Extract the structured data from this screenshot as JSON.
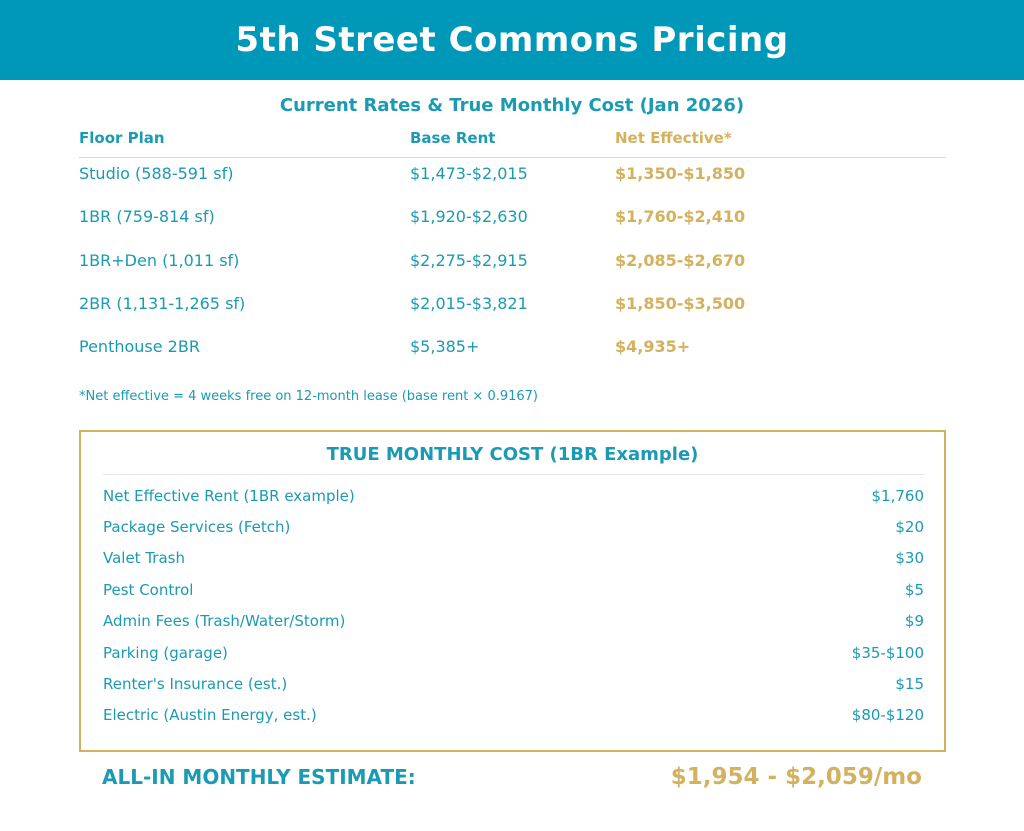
{
  "header": {
    "title": "5th Street Commons Pricing"
  },
  "subtitle": "Current Rates & True Monthly Cost (Jan 2026)",
  "rates_table": {
    "columns": [
      "Floor Plan",
      "Base Rent",
      "Net Effective*"
    ],
    "rows": [
      {
        "plan": "Studio (588-591 sf)",
        "base": "$1,473-$2,015",
        "net": "$1,350-$1,850"
      },
      {
        "plan": "1BR (759-814 sf)",
        "base": "$1,920-$2,630",
        "net": "$1,760-$2,410"
      },
      {
        "plan": "1BR+Den (1,011 sf)",
        "base": "$2,275-$2,915",
        "net": "$2,085-$2,670"
      },
      {
        "plan": "2BR (1,131-1,265 sf)",
        "base": "$2,015-$3,821",
        "net": "$1,850-$3,500"
      },
      {
        "plan": "Penthouse 2BR",
        "base": "$5,385+",
        "net": "$4,935+"
      }
    ]
  },
  "footnote": "*Net effective = 4 weeks free on 12-month lease (base rent × 0.9167)",
  "cost_box": {
    "title": "TRUE MONTHLY COST (1BR Example)",
    "items": [
      {
        "label": "Net Effective Rent (1BR example)",
        "value": "$1,760"
      },
      {
        "label": "Package Services (Fetch)",
        "value": "$20"
      },
      {
        "label": "Valet Trash",
        "value": "$30"
      },
      {
        "label": "Pest Control",
        "value": "$5"
      },
      {
        "label": "Admin Fees (Trash/Water/Storm)",
        "value": "$9"
      },
      {
        "label": "Parking (garage)",
        "value": "$35-$100"
      },
      {
        "label": "Renter's Insurance (est.)",
        "value": "$15"
      },
      {
        "label": "Electric (Austin Energy, est.)",
        "value": "$80-$120"
      }
    ]
  },
  "total": {
    "label": "ALL-IN MONTHLY ESTIMATE:",
    "value": "$1,954 - $2,059/mo"
  },
  "colors": {
    "banner": "#0098b8",
    "teal_text": "#1a9bb3",
    "gold": "#d4b15e"
  }
}
